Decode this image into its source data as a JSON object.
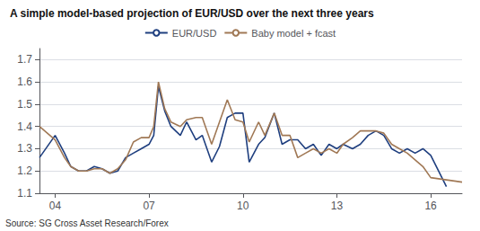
{
  "chart_data": {
    "type": "line",
    "title": "A simple model-based projection of EUR/USD over the next three years",
    "annotations": [
      "Source: SG Cross Asset Research/Forex"
    ],
    "series": [
      {
        "name": "EUR/USD",
        "color": "#1F3F7F",
        "x": [
          2003.5,
          2004.0,
          2004.3,
          2004.5,
          2004.75,
          2005.0,
          2005.25,
          2005.5,
          2005.75,
          2006.0,
          2006.25,
          2006.5,
          2006.75,
          2007.0,
          2007.15,
          2007.3,
          2007.5,
          2007.7,
          2008.0,
          2008.2,
          2008.5,
          2008.7,
          2009.0,
          2009.25,
          2009.5,
          2009.75,
          2010.0,
          2010.2,
          2010.5,
          2010.7,
          2011.0,
          2011.25,
          2011.5,
          2011.75,
          2012.0,
          2012.25,
          2012.5,
          2012.75,
          2013.0,
          2013.2,
          2013.5,
          2013.75,
          2014.0,
          2014.25,
          2014.5,
          2014.75,
          2015.0,
          2015.25,
          2015.5,
          2015.75,
          2016.0,
          2016.5
        ],
        "values": [
          1.26,
          1.36,
          1.28,
          1.22,
          1.2,
          1.2,
          1.22,
          1.21,
          1.19,
          1.2,
          1.26,
          1.28,
          1.3,
          1.32,
          1.36,
          1.58,
          1.47,
          1.4,
          1.36,
          1.42,
          1.34,
          1.36,
          1.24,
          1.31,
          1.44,
          1.46,
          1.46,
          1.24,
          1.32,
          1.35,
          1.46,
          1.32,
          1.34,
          1.34,
          1.3,
          1.32,
          1.27,
          1.32,
          1.3,
          1.32,
          1.3,
          1.32,
          1.36,
          1.38,
          1.36,
          1.3,
          1.28,
          1.3,
          1.28,
          1.3,
          1.27,
          1.13
        ]
      },
      {
        "name": "Baby model + fcast",
        "color": "#A07855",
        "x": [
          2003.5,
          2004.0,
          2004.3,
          2004.5,
          2004.75,
          2005.0,
          2005.25,
          2005.5,
          2005.75,
          2006.0,
          2006.25,
          2006.5,
          2006.75,
          2007.0,
          2007.15,
          2007.3,
          2007.5,
          2007.7,
          2008.0,
          2008.2,
          2008.5,
          2008.7,
          2009.0,
          2009.25,
          2009.5,
          2009.75,
          2010.0,
          2010.2,
          2010.5,
          2010.7,
          2011.0,
          2011.25,
          2011.5,
          2011.75,
          2012.0,
          2012.25,
          2012.5,
          2012.75,
          2013.0,
          2013.2,
          2013.5,
          2013.75,
          2014.0,
          2014.25,
          2014.5,
          2014.75,
          2015.0,
          2015.25,
          2015.5,
          2015.75,
          2016.0,
          2016.5,
          2017.0
        ],
        "values": [
          1.4,
          1.34,
          1.26,
          1.22,
          1.2,
          1.2,
          1.21,
          1.21,
          1.19,
          1.21,
          1.25,
          1.33,
          1.35,
          1.35,
          1.4,
          1.6,
          1.48,
          1.42,
          1.4,
          1.43,
          1.44,
          1.44,
          1.32,
          1.42,
          1.52,
          1.43,
          1.42,
          1.33,
          1.42,
          1.36,
          1.46,
          1.36,
          1.36,
          1.26,
          1.28,
          1.3,
          1.28,
          1.3,
          1.28,
          1.32,
          1.35,
          1.38,
          1.38,
          1.38,
          1.37,
          1.32,
          1.3,
          1.28,
          1.25,
          1.22,
          1.17,
          1.16,
          1.15
        ]
      }
    ],
    "xlim": [
      2003.5,
      2017.0
    ],
    "xticks": [
      {
        "value": 2004,
        "label": "04"
      },
      {
        "value": 2007,
        "label": "07"
      },
      {
        "value": 2010,
        "label": "10"
      },
      {
        "value": 2013,
        "label": "13"
      },
      {
        "value": 2016,
        "label": "16"
      }
    ],
    "ylim": [
      1.1,
      1.75
    ],
    "yticks": [
      1.1,
      1.2,
      1.3,
      1.4,
      1.5,
      1.6,
      1.7
    ],
    "grid": true,
    "legend": "top"
  }
}
